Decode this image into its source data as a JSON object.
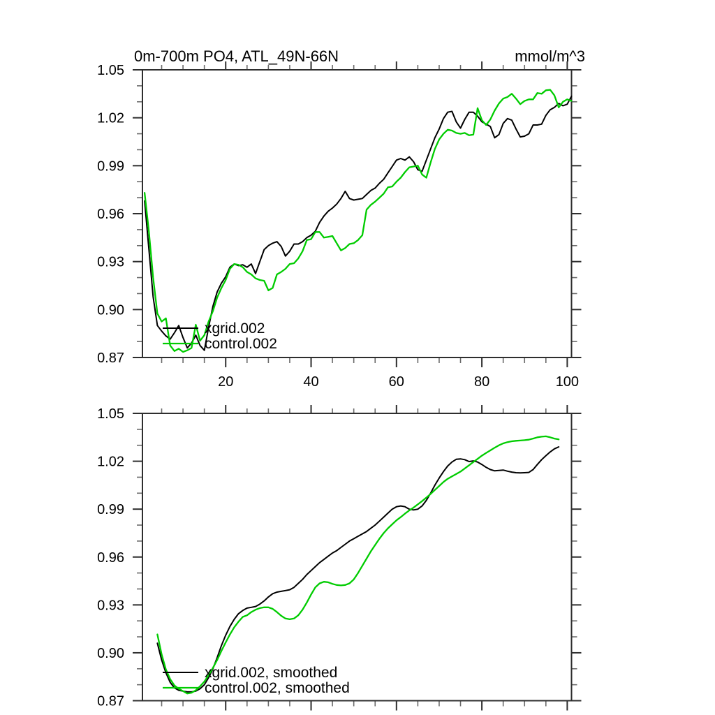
{
  "figure": {
    "background": "#ffffff",
    "frame_color": "#2e2e2e",
    "minor_tick_color": "#6a6a6a"
  },
  "chart_data": [
    {
      "type": "line",
      "title": "0m-700m PO4, ATL_49N-66N",
      "units_label": "mmol/m^3",
      "x_axis": {
        "range": [
          0.5,
          101
        ],
        "ticks": [
          20,
          40,
          60,
          80,
          100
        ],
        "minor_step": 5,
        "labels_visible": true
      },
      "y_axis": {
        "range": [
          0.87,
          1.05
        ],
        "ticks": [
          0.87,
          0.9,
          0.93,
          0.96,
          0.99,
          1.02,
          1.05
        ],
        "minor_step": 0.01
      },
      "grid": false,
      "legend_position": "inside-lower-left",
      "series": [
        {
          "name": "xgrid.002",
          "color": "#000000",
          "width": 2,
          "x_start": 1,
          "x_step": 1,
          "values": [
            0.968,
            0.938,
            0.908,
            0.89,
            0.8865,
            0.8835,
            0.8815,
            0.8855,
            0.89,
            0.8825,
            0.876,
            0.879,
            0.884,
            0.8775,
            0.8745,
            0.889,
            0.902,
            0.911,
            0.9165,
            0.9205,
            0.9265,
            0.9285,
            0.9275,
            0.928,
            0.9265,
            0.9285,
            0.9225,
            0.93,
            0.9375,
            0.94,
            0.9415,
            0.9425,
            0.9395,
            0.9335,
            0.9365,
            0.941,
            0.941,
            0.9425,
            0.945,
            0.9465,
            0.949,
            0.9545,
            0.9585,
            0.9615,
            0.9635,
            0.966,
            0.9695,
            0.974,
            0.9695,
            0.9685,
            0.969,
            0.9695,
            0.972,
            0.9745,
            0.976,
            0.979,
            0.9815,
            0.9855,
            0.9895,
            0.9935,
            0.9945,
            0.9935,
            0.9955,
            0.9925,
            0.9875,
            0.9865,
            0.9935,
            1.0005,
            1.0075,
            1.013,
            1.0195,
            1.0235,
            1.024,
            1.0175,
            1.0135,
            1.019,
            1.0235,
            1.0235,
            1.021,
            1.0175,
            1.016,
            1.0145,
            1.0075,
            1.0095,
            1.0165,
            1.0195,
            1.0185,
            1.013,
            1.008,
            1.0085,
            1.01,
            1.0155,
            1.0155,
            1.016,
            1.0215,
            1.025,
            1.0265,
            1.029,
            1.0275,
            1.0285,
            1.0335
          ]
        },
        {
          "name": "control.002",
          "color": "#00cc00",
          "width": 2.3,
          "x_start": 1,
          "x_step": 1,
          "values": [
            0.973,
            0.949,
            0.92,
            0.8975,
            0.8925,
            0.8945,
            0.8775,
            0.874,
            0.8755,
            0.8735,
            0.8745,
            0.876,
            0.8905,
            0.8805,
            0.884,
            0.8925,
            0.899,
            0.9075,
            0.9135,
            0.9185,
            0.9255,
            0.9285,
            0.928,
            0.9265,
            0.9235,
            0.922,
            0.9195,
            0.9185,
            0.918,
            0.912,
            0.9135,
            0.922,
            0.9235,
            0.9255,
            0.9285,
            0.929,
            0.932,
            0.9365,
            0.9435,
            0.944,
            0.9485,
            0.9485,
            0.945,
            0.9455,
            0.946,
            0.9415,
            0.937,
            0.9385,
            0.941,
            0.9415,
            0.9435,
            0.9465,
            0.9625,
            0.9655,
            0.9675,
            0.97,
            0.9725,
            0.9765,
            0.977,
            0.98,
            0.9825,
            0.986,
            0.989,
            0.9895,
            0.99,
            0.9845,
            0.9825,
            0.992,
            1.0005,
            1.0065,
            1.01,
            1.0125,
            1.012,
            1.0105,
            1.01,
            1.0105,
            1.009,
            1.0095,
            1.026,
            1.0185,
            1.0155,
            1.019,
            1.0245,
            1.029,
            1.032,
            1.033,
            1.035,
            1.032,
            1.0285,
            1.0305,
            1.0315,
            1.0315,
            1.0355,
            1.035,
            1.0372,
            1.0375,
            1.034,
            1.0265,
            1.03,
            1.0315,
            1.0305
          ]
        }
      ]
    },
    {
      "type": "line",
      "title": "",
      "units_label": "",
      "x_axis": {
        "range": [
          0.5,
          101
        ],
        "ticks": [
          20,
          40,
          60,
          80,
          100
        ],
        "minor_step": 5,
        "labels_visible": false
      },
      "y_axis": {
        "range": [
          0.87,
          1.05
        ],
        "ticks": [
          0.87,
          0.9,
          0.93,
          0.96,
          0.99,
          1.02,
          1.05
        ],
        "minor_step": 0.01
      },
      "grid": false,
      "legend_position": "inside-lower-left",
      "series": [
        {
          "name": "xgrid.002, smoothed",
          "color": "#000000",
          "width": 2,
          "x_start": 4,
          "x_step": 1,
          "values": [
            0.906,
            0.8955,
            0.8875,
            0.8815,
            0.878,
            0.8765,
            0.876,
            0.8755,
            0.8755,
            0.876,
            0.8775,
            0.88,
            0.8845,
            0.89,
            0.897,
            0.9045,
            0.911,
            0.9165,
            0.921,
            0.9245,
            0.9265,
            0.928,
            0.9285,
            0.929,
            0.9305,
            0.9325,
            0.935,
            0.937,
            0.938,
            0.9385,
            0.939,
            0.9395,
            0.941,
            0.9435,
            0.946,
            0.949,
            0.9515,
            0.954,
            0.9565,
            0.9585,
            0.9605,
            0.9625,
            0.964,
            0.966,
            0.968,
            0.97,
            0.9715,
            0.973,
            0.9745,
            0.976,
            0.978,
            0.98,
            0.9825,
            0.985,
            0.9875,
            0.99,
            0.9915,
            0.992,
            0.9915,
            0.99,
            0.9895,
            0.99,
            0.992,
            0.9955,
            1.0,
            1.005,
            1.0095,
            1.0135,
            1.017,
            1.0195,
            1.0212,
            1.0215,
            1.021,
            1.0198,
            1.0202,
            1.0195,
            1.018,
            1.0162,
            1.0148,
            1.014,
            1.0142,
            1.0145,
            1.0138,
            1.0132,
            1.0128,
            1.0127,
            1.0128,
            1.013,
            1.0148,
            1.018,
            1.021,
            1.0235,
            1.0258,
            1.0278,
            1.029
          ]
        },
        {
          "name": "control.002, smoothed",
          "color": "#00cc00",
          "width": 2.3,
          "x_start": 4,
          "x_step": 1,
          "values": [
            0.9115,
            0.899,
            0.8895,
            0.8835,
            0.8795,
            0.8775,
            0.876,
            0.8745,
            0.875,
            0.8765,
            0.879,
            0.882,
            0.886,
            0.8905,
            0.8955,
            0.9012,
            0.9065,
            0.9115,
            0.916,
            0.9195,
            0.9225,
            0.9235,
            0.9255,
            0.927,
            0.928,
            0.9285,
            0.9285,
            0.9275,
            0.9255,
            0.9232,
            0.9215,
            0.921,
            0.9215,
            0.9235,
            0.927,
            0.9315,
            0.9365,
            0.941,
            0.9435,
            0.9445,
            0.9442,
            0.9432,
            0.9425,
            0.9422,
            0.9425,
            0.9435,
            0.946,
            0.95,
            0.9545,
            0.959,
            0.9635,
            0.9675,
            0.9715,
            0.975,
            0.978,
            0.9805,
            0.983,
            0.985,
            0.9872,
            0.9892,
            0.991,
            0.993,
            0.995,
            0.9972,
            0.9995,
            1.002,
            1.0045,
            1.007,
            1.009,
            1.0105,
            1.012,
            1.0135,
            1.0155,
            1.0175,
            1.0195,
            1.0215,
            1.0235,
            1.0252,
            1.0268,
            1.0285,
            1.03,
            1.0312,
            1.032,
            1.0325,
            1.0328,
            1.033,
            1.0332,
            1.0335,
            1.0342,
            1.035,
            1.0354,
            1.0356,
            1.035,
            1.0342,
            1.0337
          ]
        }
      ]
    }
  ]
}
